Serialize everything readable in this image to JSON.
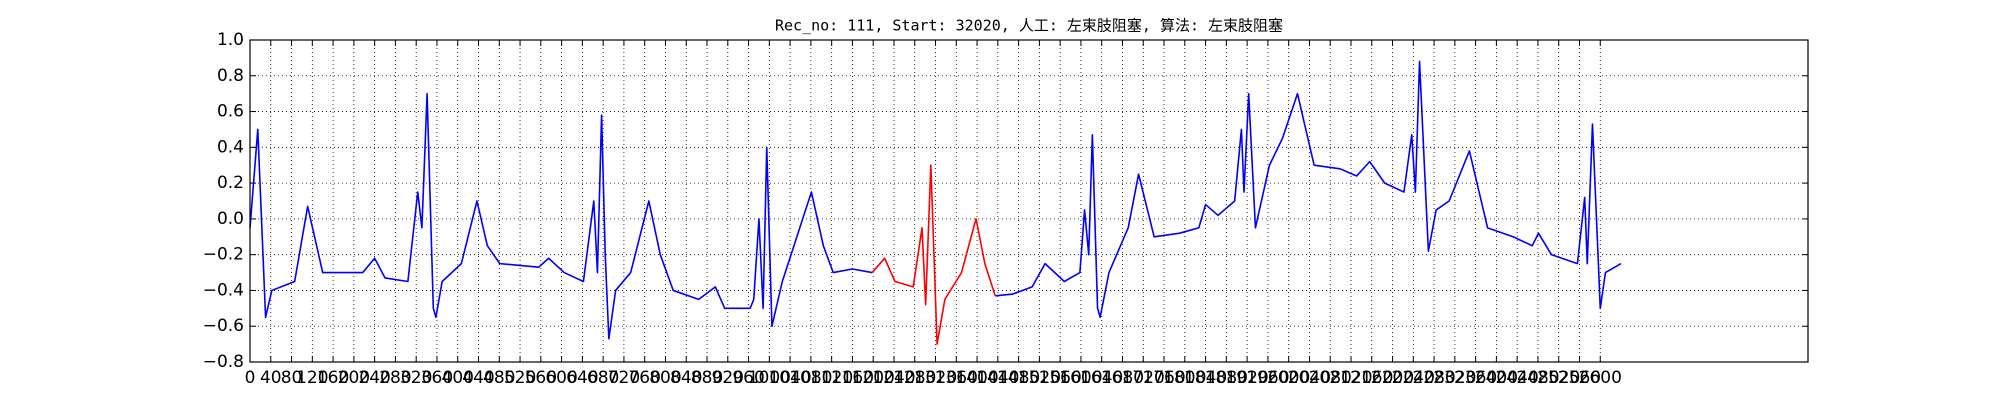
{
  "chart_data": {
    "type": "line",
    "title": "Rec_no: 111, Start: 32020, 人工: 左束肢阻塞, 算法: 左束肢阻塞",
    "x": [
      0,
      15,
      30,
      42,
      86,
      111,
      140,
      217,
      240,
      260,
      304,
      323,
      331,
      341,
      353,
      358,
      370,
      407,
      437,
      457,
      481,
      556,
      575,
      605,
      642,
      662,
      669,
      677,
      684,
      691,
      704,
      733,
      768,
      790,
      815,
      864,
      896,
      914,
      963,
      970,
      980,
      988,
      995,
      1005,
      1025,
      1081,
      1104,
      1123,
      1160,
      1198,
      1222,
      1242,
      1277,
      1294,
      1301,
      1311,
      1323,
      1338,
      1370,
      1398,
      1415,
      1435,
      1469,
      1506,
      1531,
      1568,
      1598,
      1607,
      1615,
      1622,
      1632,
      1637,
      1654,
      1691,
      1711,
      1741,
      1790,
      1827,
      1840,
      1864,
      1896,
      1909,
      1914,
      1923,
      1936,
      1963,
      1988,
      2017,
      2049,
      2099,
      2131,
      2156,
      2185,
      2222,
      2237,
      2244,
      2252,
      2269,
      2284,
      2309,
      2348,
      2383,
      2432,
      2469,
      2481,
      2506,
      2556,
      2570,
      2575,
      2585,
      2600,
      2610,
      2640
    ],
    "series": [
      {
        "color": "#0000ff",
        "values": [
          -0.05,
          0.5,
          -0.55,
          -0.4,
          -0.35,
          0.07,
          -0.3,
          -0.3,
          -0.22,
          -0.33,
          -0.35,
          0.15,
          -0.05,
          0.7,
          -0.5,
          -0.55,
          -0.35,
          -0.25,
          0.1,
          -0.15,
          -0.25,
          -0.27,
          -0.22,
          -0.3,
          -0.35,
          0.1,
          -0.3,
          0.58,
          -0.2,
          -0.67,
          -0.4,
          -0.3,
          0.1,
          -0.2,
          -0.4,
          -0.45,
          -0.38,
          -0.5,
          -0.5,
          -0.45,
          0.0,
          -0.5,
          0.4,
          -0.6,
          -0.35,
          0.15,
          -0.15,
          -0.3,
          -0.28,
          -0.3,
          null,
          null,
          null,
          null,
          null,
          null,
          null,
          null,
          null,
          null,
          null,
          -0.43,
          -0.42,
          -0.38,
          -0.25,
          -0.35,
          -0.3,
          0.05,
          -0.2,
          0.47,
          -0.5,
          -0.55,
          -0.3,
          -0.05,
          0.25,
          -0.1,
          -0.08,
          -0.05,
          0.08,
          0.02,
          0.1,
          0.5,
          0.15,
          0.7,
          -0.05,
          0.3,
          0.45,
          0.7,
          0.3,
          0.28,
          0.24,
          0.32,
          0.2,
          0.15,
          0.47,
          0.15,
          0.88,
          -0.18,
          0.05,
          0.1,
          0.38,
          -0.05,
          -0.1,
          -0.15,
          -0.08,
          -0.2,
          -0.25,
          0.12,
          -0.25,
          0.53,
          -0.5,
          -0.3,
          -0.25
        ]
      },
      {
        "color": "#ff0000",
        "values": [
          null,
          null,
          null,
          null,
          null,
          null,
          null,
          null,
          null,
          null,
          null,
          null,
          null,
          null,
          null,
          null,
          null,
          null,
          null,
          null,
          null,
          null,
          null,
          null,
          null,
          null,
          null,
          null,
          null,
          null,
          null,
          null,
          null,
          null,
          null,
          null,
          null,
          null,
          null,
          null,
          null,
          null,
          null,
          null,
          null,
          null,
          null,
          null,
          null,
          -0.3,
          -0.22,
          -0.35,
          -0.38,
          -0.05,
          -0.48,
          0.3,
          -0.7,
          -0.45,
          -0.3,
          0.0,
          -0.25,
          -0.43,
          null,
          null,
          null,
          null,
          null,
          null,
          null,
          null,
          null,
          null,
          null,
          null,
          null,
          null,
          null,
          null,
          null,
          null,
          null,
          null,
          null,
          null,
          null,
          null,
          null,
          null,
          null,
          null,
          null,
          null,
          null,
          null,
          null,
          null,
          null,
          null,
          null,
          null,
          null,
          null,
          null,
          null,
          null,
          null,
          null,
          null,
          null,
          null,
          null,
          null,
          null
        ]
      }
    ],
    "xlim": [
      0,
      3000
    ],
    "xticks": [
      0,
      40,
      80,
      120,
      160,
      200,
      240,
      280,
      320,
      360,
      400,
      440,
      480,
      520,
      560,
      600,
      640,
      680,
      720,
      760,
      800,
      840,
      880,
      920,
      960,
      1000,
      1040,
      1080,
      1120,
      1160,
      1200,
      1240,
      1280,
      1320,
      1360,
      1400,
      1440,
      1480,
      1520,
      1560,
      1600,
      1640,
      1680,
      1720,
      1760,
      1800,
      1840,
      1880,
      1920,
      1960,
      2000,
      2040,
      2080,
      2120,
      2160,
      2200,
      2240,
      2280,
      2320,
      2360,
      2400,
      2440,
      2480,
      2520,
      2560,
      2600
    ],
    "ylim": [
      -0.8,
      1.0
    ],
    "yticks": [
      {
        "value": -0.8,
        "label": "−0.8"
      },
      {
        "value": -0.6,
        "label": "−0.6"
      },
      {
        "value": -0.4,
        "label": "−0.4"
      },
      {
        "value": -0.2,
        "label": "−0.2"
      },
      {
        "value": 0,
        "label": "0.0"
      },
      0.2,
      0.4,
      0.6,
      0.8,
      {
        "value": 1,
        "label": "1.0"
      }
    ],
    "grid": true
  }
}
